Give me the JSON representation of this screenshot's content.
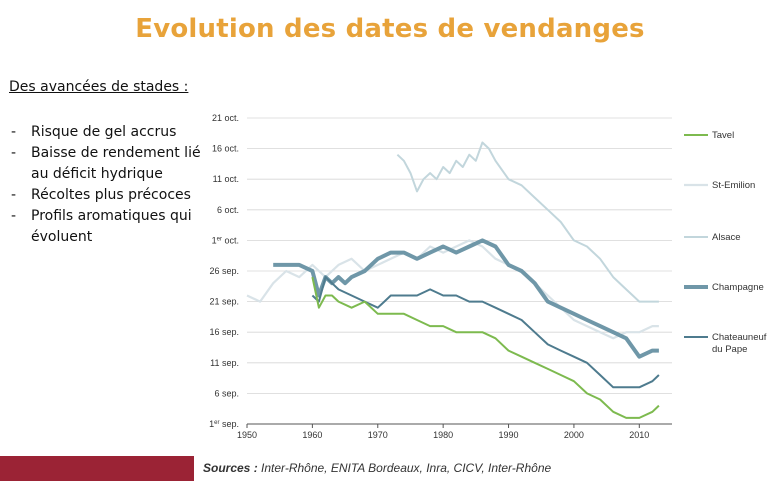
{
  "slide": {
    "title": "Evolution des dates de vendanges",
    "subheading": "Des avancées de stades :",
    "bullets": [
      "Risque de gel accrus",
      "Baisse de rendement lié au déficit hydrique",
      "Récoltes plus précoces",
      "Profils aromatiques qui évoluent"
    ],
    "sources_label": "Sources :",
    "sources_text": " Inter-Rhône, ENITA Bordeaux, Inra, CICV, Inter-Rhône",
    "accent_color": "#e8a33a",
    "bar_color": "#9b2335"
  },
  "chart_data": {
    "type": "line",
    "title": "",
    "xlabel": "",
    "ylabel": "",
    "xlim": [
      1950,
      2015
    ],
    "x_ticks": [
      "1950",
      "1960",
      "1970",
      "1980",
      "1990",
      "2000",
      "2010"
    ],
    "ylim": [
      "1 sept",
      "21 oct"
    ],
    "y_ticks": [
      "1er sep.",
      "6 sep.",
      "11 sep.",
      "16 sep.",
      "21 sep.",
      "26 sep.",
      "1er oct.",
      "6 oct.",
      "11 oct.",
      "16 oct.",
      "21 oct."
    ],
    "grid": "horizontal",
    "legend_position": "right",
    "series": [
      {
        "name": "Tavel",
        "color": "#7dba4f",
        "x": [
          1960,
          1961,
          1962,
          1963,
          1964,
          1966,
          1968,
          1970,
          1972,
          1974,
          1976,
          1978,
          1980,
          1982,
          1984,
          1986,
          1988,
          1990,
          1992,
          1994,
          1996,
          1998,
          2000,
          2002,
          2004,
          2006,
          2008,
          2010,
          2012,
          2013
        ],
        "y": [
          "2022-09-25",
          "2022-09-20",
          "2022-09-22",
          "2022-09-22",
          "2022-09-21",
          "2022-09-20",
          "2022-09-21",
          "2022-09-19",
          "2022-09-19",
          "2022-09-19",
          "2022-09-18",
          "2022-09-17",
          "2022-09-17",
          "2022-09-16",
          "2022-09-16",
          "2022-09-16",
          "2022-09-15",
          "2022-09-13",
          "2022-09-12",
          "2022-09-11",
          "2022-09-10",
          "2022-09-09",
          "2022-09-08",
          "2022-09-06",
          "2022-09-05",
          "2022-09-03",
          "2022-09-02",
          "2022-09-02",
          "2022-09-03",
          "2022-09-04"
        ]
      },
      {
        "name": "St-Emilion",
        "color": "#d9e3e8",
        "x": [
          1950,
          1952,
          1954,
          1956,
          1958,
          1960,
          1962,
          1964,
          1966,
          1968,
          1970,
          1972,
          1974,
          1976,
          1978,
          1980,
          1982,
          1984,
          1986,
          1988,
          1990,
          1992,
          1994,
          1996,
          1998,
          2000,
          2002,
          2004,
          2006,
          2008,
          2010,
          2012,
          2013
        ],
        "y": [
          "2022-09-22",
          "2022-09-21",
          "2022-09-24",
          "2022-09-26",
          "2022-09-25",
          "2022-09-27",
          "2022-09-25",
          "2022-09-27",
          "2022-09-28",
          "2022-09-26",
          "2022-09-27",
          "2022-09-28",
          "2022-09-29",
          "2022-09-28",
          "2022-09-30",
          "2022-09-29",
          "2022-09-30",
          "2022-10-01",
          "2022-09-30",
          "2022-09-28",
          "2022-09-27",
          "2022-09-26",
          "2022-09-24",
          "2022-09-22",
          "2022-09-20",
          "2022-09-18",
          "2022-09-17",
          "2022-09-16",
          "2022-09-15",
          "2022-09-16",
          "2022-09-16",
          "2022-09-17",
          "2022-09-17"
        ]
      },
      {
        "name": "Alsace",
        "color": "#c2d6dc",
        "x": [
          1973,
          1974,
          1975,
          1976,
          1977,
          1978,
          1979,
          1980,
          1981,
          1982,
          1983,
          1984,
          1985,
          1986,
          1987,
          1988,
          1990,
          1992,
          1994,
          1996,
          1998,
          2000,
          2002,
          2004,
          2006,
          2008,
          2010,
          2012,
          2013
        ],
        "y": [
          "2022-10-15",
          "2022-10-14",
          "2022-10-12",
          "2022-10-09",
          "2022-10-11",
          "2022-10-12",
          "2022-10-11",
          "2022-10-13",
          "2022-10-12",
          "2022-10-14",
          "2022-10-13",
          "2022-10-15",
          "2022-10-14",
          "2022-10-17",
          "2022-10-16",
          "2022-10-14",
          "2022-10-11",
          "2022-10-10",
          "2022-10-08",
          "2022-10-06",
          "2022-10-04",
          "2022-10-01",
          "2022-09-30",
          "2022-09-28",
          "2022-09-25",
          "2022-09-23",
          "2022-09-21",
          "2022-09-21",
          "2022-09-21"
        ]
      },
      {
        "name": "Champagne",
        "color": "#6f97a8",
        "x": [
          1954,
          1956,
          1958,
          1960,
          1961,
          1962,
          1963,
          1964,
          1965,
          1966,
          1968,
          1970,
          1972,
          1974,
          1976,
          1978,
          1980,
          1982,
          1984,
          1986,
          1988,
          1990,
          1992,
          1994,
          1996,
          1998,
          2000,
          2002,
          2004,
          2006,
          2008,
          2010,
          2012,
          2013
        ],
        "y": [
          "2022-09-27",
          "2022-09-27",
          "2022-09-27",
          "2022-09-26",
          "2022-09-22",
          "2022-09-25",
          "2022-09-24",
          "2022-09-25",
          "2022-09-24",
          "2022-09-25",
          "2022-09-26",
          "2022-09-28",
          "2022-09-29",
          "2022-09-29",
          "2022-09-28",
          "2022-09-29",
          "2022-09-30",
          "2022-09-29",
          "2022-09-30",
          "2022-10-01",
          "2022-09-30",
          "2022-09-27",
          "2022-09-26",
          "2022-09-24",
          "2022-09-21",
          "2022-09-20",
          "2022-09-19",
          "2022-09-18",
          "2022-09-17",
          "2022-09-16",
          "2022-09-15",
          "2022-09-12",
          "2022-09-13",
          "2022-09-13"
        ]
      },
      {
        "name": "Chateauneuf du Pape",
        "color": "#4e7b8e",
        "x": [
          1960,
          1961,
          1962,
          1963,
          1964,
          1966,
          1968,
          1970,
          1972,
          1974,
          1976,
          1978,
          1980,
          1982,
          1984,
          1986,
          1988,
          1990,
          1992,
          1994,
          1996,
          1998,
          2000,
          2002,
          2004,
          2006,
          2008,
          2010,
          2012,
          2013
        ],
        "y": [
          "2022-09-22",
          "2022-09-21",
          "2022-09-25",
          "2022-09-24",
          "2022-09-23",
          "2022-09-22",
          "2022-09-21",
          "2022-09-20",
          "2022-09-22",
          "2022-09-22",
          "2022-09-22",
          "2022-09-23",
          "2022-09-22",
          "2022-09-22",
          "2022-09-21",
          "2022-09-21",
          "2022-09-20",
          "2022-09-19",
          "2022-09-18",
          "2022-09-16",
          "2022-09-14",
          "2022-09-13",
          "2022-09-12",
          "2022-09-11",
          "2022-09-09",
          "2022-09-07",
          "2022-09-07",
          "2022-09-07",
          "2022-09-08",
          "2022-09-09"
        ]
      }
    ]
  }
}
